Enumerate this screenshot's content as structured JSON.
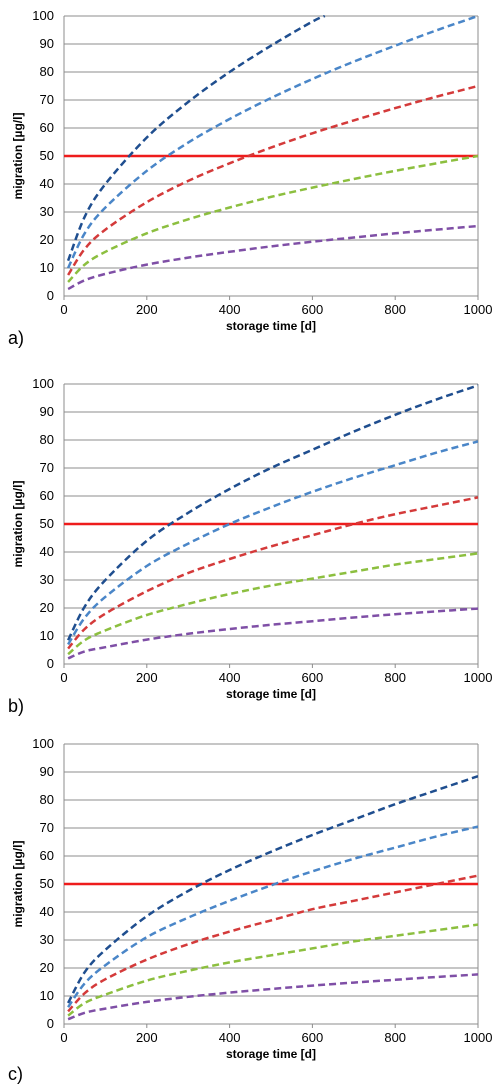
{
  "chart_data": [
    {
      "type": "line",
      "panel_label": "a)",
      "xlabel": "storage time [d]",
      "ylabel": "migration [µg/l]",
      "xlim": [
        0,
        1000
      ],
      "ylim": [
        0,
        100
      ],
      "xticks": [
        0,
        200,
        400,
        600,
        800,
        1000
      ],
      "yticks": [
        0,
        10,
        20,
        30,
        40,
        50,
        60,
        70,
        80,
        90,
        100
      ],
      "grid": true,
      "threshold": {
        "y": 50,
        "color": "#ee1c1c"
      },
      "series": [
        {
          "color": "#1f4e8f",
          "style": "dashed",
          "x": [
            10,
            50,
            100,
            200,
            300,
            400,
            500,
            600,
            630
          ],
          "y": [
            12.6,
            28.3,
            40,
            56.6,
            69.3,
            80,
            89.4,
            98,
            100
          ]
        },
        {
          "color": "#4a86c8",
          "style": "dashed",
          "x": [
            10,
            50,
            100,
            200,
            300,
            400,
            500,
            600,
            700,
            800,
            900,
            1000
          ],
          "y": [
            10,
            22.4,
            31.6,
            44.7,
            54.8,
            63.2,
            70.7,
            77.5,
            83.7,
            89.4,
            94.9,
            100
          ]
        },
        {
          "color": "#d43a3a",
          "style": "dashed",
          "x": [
            10,
            50,
            100,
            200,
            300,
            400,
            500,
            600,
            700,
            800,
            900,
            1000
          ],
          "y": [
            7.5,
            16.8,
            23.7,
            33.5,
            41.1,
            47.4,
            53,
            58.1,
            62.7,
            67.1,
            71.2,
            75
          ]
        },
        {
          "color": "#8cbf3f",
          "style": "dashed",
          "x": [
            10,
            50,
            100,
            200,
            300,
            400,
            500,
            600,
            700,
            800,
            900,
            1000
          ],
          "y": [
            5,
            11.2,
            15.8,
            22.4,
            27.4,
            31.6,
            35.4,
            38.7,
            41.8,
            44.7,
            47.4,
            50
          ]
        },
        {
          "color": "#7f4fa6",
          "style": "dashed",
          "x": [
            10,
            50,
            100,
            200,
            300,
            400,
            500,
            600,
            700,
            800,
            900,
            1000
          ],
          "y": [
            2.5,
            5.6,
            7.9,
            11.2,
            13.7,
            15.8,
            17.7,
            19.4,
            20.9,
            22.4,
            23.7,
            25
          ]
        }
      ]
    },
    {
      "type": "line",
      "panel_label": "b)",
      "xlabel": "storage time [d]",
      "ylabel": "migration [µg/l]",
      "xlim": [
        0,
        1000
      ],
      "ylim": [
        0,
        100
      ],
      "xticks": [
        0,
        200,
        400,
        600,
        800,
        1000
      ],
      "yticks": [
        0,
        10,
        20,
        30,
        40,
        50,
        60,
        70,
        80,
        90,
        100
      ],
      "grid": true,
      "threshold": {
        "y": 50,
        "color": "#ee1c1c"
      },
      "series": [
        {
          "color": "#1f4e8f",
          "style": "dashed",
          "x": [
            10,
            50,
            100,
            200,
            300,
            400,
            500,
            600,
            700,
            800,
            900,
            1000
          ],
          "y": [
            8.5,
            20.5,
            30,
            44,
            54,
            62.5,
            70,
            76.5,
            83,
            89,
            94.5,
            99.5
          ]
        },
        {
          "color": "#4a86c8",
          "style": "dashed",
          "x": [
            10,
            50,
            100,
            200,
            300,
            400,
            500,
            600,
            700,
            800,
            900,
            1000
          ],
          "y": [
            7,
            16.5,
            24,
            35,
            43,
            50,
            56,
            61.5,
            66.5,
            71,
            75.5,
            79.5
          ]
        },
        {
          "color": "#d43a3a",
          "style": "dashed",
          "x": [
            10,
            50,
            100,
            200,
            300,
            400,
            500,
            600,
            700,
            800,
            900,
            1000
          ],
          "y": [
            5.5,
            12.5,
            18,
            26,
            32.5,
            37.5,
            42,
            46,
            50,
            53.5,
            56.5,
            59.5
          ]
        },
        {
          "color": "#8cbf3f",
          "style": "dashed",
          "x": [
            10,
            50,
            100,
            200,
            300,
            400,
            500,
            600,
            700,
            800,
            900,
            1000
          ],
          "y": [
            3.5,
            8.5,
            12,
            17.5,
            21.5,
            25,
            28,
            30.5,
            33,
            35.5,
            37.5,
            39.5
          ]
        },
        {
          "color": "#7f4fa6",
          "style": "dashed",
          "x": [
            10,
            50,
            100,
            200,
            300,
            400,
            500,
            600,
            700,
            800,
            900,
            1000
          ],
          "y": [
            2,
            4.5,
            6,
            8.7,
            10.8,
            12.5,
            14,
            15.3,
            16.6,
            17.8,
            18.8,
            19.8
          ]
        }
      ]
    },
    {
      "type": "line",
      "panel_label": "c)",
      "xlabel": "storage time [d]",
      "ylabel": "migration [µg/l]",
      "xlim": [
        0,
        1000
      ],
      "ylim": [
        0,
        100
      ],
      "xticks": [
        0,
        200,
        400,
        600,
        800,
        1000
      ],
      "yticks": [
        0,
        10,
        20,
        30,
        40,
        50,
        60,
        70,
        80,
        90,
        100
      ],
      "grid": true,
      "threshold": {
        "y": 50,
        "color": "#ee1c1c"
      },
      "series": [
        {
          "color": "#1f4e8f",
          "style": "dashed",
          "x": [
            10,
            50,
            100,
            200,
            300,
            400,
            500,
            600,
            700,
            800,
            900,
            1000
          ],
          "y": [
            7.5,
            18.5,
            26.5,
            38.5,
            47.5,
            55,
            61.5,
            67.5,
            73,
            78.5,
            83.5,
            88.5
          ]
        },
        {
          "color": "#4a86c8",
          "style": "dashed",
          "x": [
            10,
            50,
            100,
            200,
            300,
            400,
            500,
            600,
            700,
            800,
            900,
            1000
          ],
          "y": [
            6,
            14.5,
            21,
            31,
            38,
            44,
            49.5,
            54.5,
            59,
            63,
            67,
            70.5
          ]
        },
        {
          "color": "#d43a3a",
          "style": "dashed",
          "x": [
            10,
            50,
            100,
            200,
            300,
            400,
            500,
            600,
            700,
            800,
            900,
            1000
          ],
          "y": [
            4.5,
            11,
            16,
            23,
            28.5,
            33,
            37,
            41,
            44,
            47,
            50,
            53
          ]
        },
        {
          "color": "#8cbf3f",
          "style": "dashed",
          "x": [
            10,
            50,
            100,
            200,
            300,
            400,
            500,
            600,
            700,
            800,
            900,
            1000
          ],
          "y": [
            3,
            7.5,
            10.5,
            15.5,
            19,
            22,
            24.5,
            27,
            29.5,
            31.5,
            33.5,
            35.5
          ]
        },
        {
          "color": "#7f4fa6",
          "style": "dashed",
          "x": [
            10,
            50,
            100,
            200,
            300,
            400,
            500,
            600,
            700,
            800,
            900,
            1000
          ],
          "y": [
            1.7,
            4,
            5.5,
            7.9,
            9.7,
            11.2,
            12.5,
            13.7,
            14.8,
            15.8,
            16.8,
            17.7
          ]
        }
      ]
    }
  ]
}
